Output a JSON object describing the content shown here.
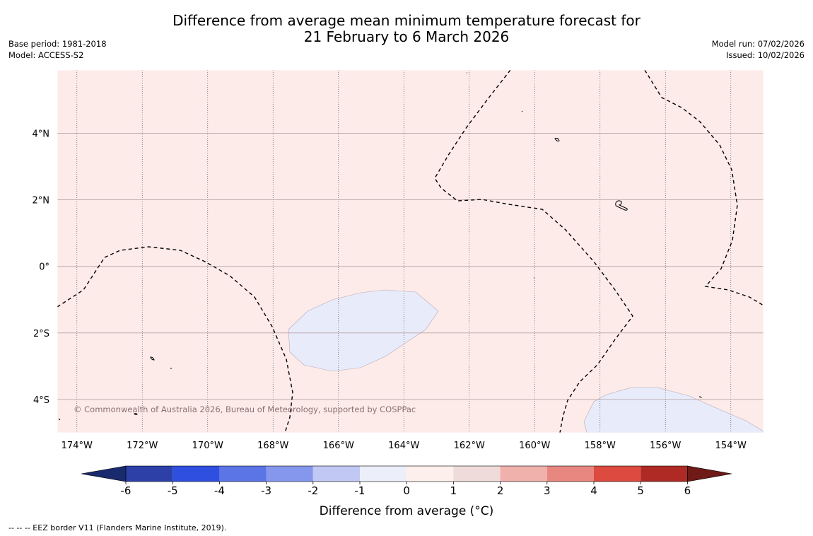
{
  "title": {
    "line1": "Difference from average mean minimum temperature forecast for",
    "line2": "21 February to 6 March 2026"
  },
  "meta_left": {
    "base_period": "Base period: 1981-2018",
    "model": "Model: ACCESS-S2"
  },
  "meta_right": {
    "model_run": "Model run: 07/02/2026",
    "issued": "Issued: 10/02/2026"
  },
  "map": {
    "lon_labels": [
      "174°W",
      "172°W",
      "170°W",
      "168°W",
      "166°W",
      "164°W",
      "162°W",
      "160°W",
      "158°W",
      "156°W",
      "154°W"
    ],
    "lon_values": [
      -174,
      -172,
      -170,
      -168,
      -166,
      -164,
      -162,
      -160,
      -158,
      -156,
      -154
    ],
    "lat_labels": [
      "4°N",
      "2°N",
      "0°",
      "2°S",
      "4°S"
    ],
    "lat_values": [
      4,
      2,
      0,
      -2,
      -4
    ],
    "extent": {
      "lon_min": -174.6,
      "lon_max": -153.0,
      "lat_min": -5.0,
      "lat_max": 5.9
    },
    "background_color": "#fcebe9",
    "anomaly_fill_color": "#e8ebfa",
    "copyright": "© Commonwealth of Australia 2026, Bureau of Meteorology, supported by COSPPac"
  },
  "colorbar": {
    "label": "Difference from average (°C)",
    "tick_labels": [
      "-6",
      "-5",
      "-4",
      "-3",
      "-2",
      "-1",
      "0",
      "1",
      "2",
      "3",
      "4",
      "5",
      "6"
    ],
    "colors": [
      "#1a2a6e",
      "#2c40a8",
      "#2f4fe0",
      "#5b74e6",
      "#8597ec",
      "#c2c8f4",
      "#eceffa",
      "#fcefec",
      "#efdbda",
      "#f0b0ab",
      "#e88680",
      "#dd4a40",
      "#b02a25",
      "#6e1a17"
    ]
  },
  "footer": "--  --  -- EEZ border V11 (Flanders Marine Institute, 2019)."
}
